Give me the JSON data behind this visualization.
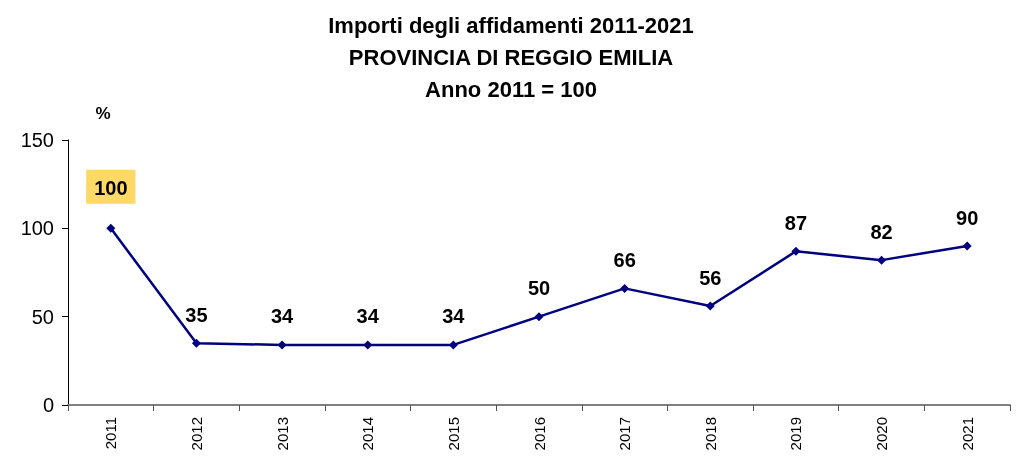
{
  "chart_data": {
    "type": "line",
    "title": "Importi degli affidamenti 2011-2021\nPROVINCIA DI REGGIO EMILIA\nAnno 2011 = 100",
    "ylabel": "%",
    "categories": [
      "2011",
      "2012",
      "2013",
      "2014",
      "2015",
      "2016",
      "2017",
      "2018",
      "2019",
      "2020",
      "2021"
    ],
    "series": [
      {
        "color": "#000080",
        "values": [
          100,
          35,
          34,
          34,
          34,
          50,
          66,
          56,
          87,
          82,
          90
        ]
      }
    ],
    "ylim": [
      0,
      150
    ],
    "yticks": [
      0,
      50,
      100,
      150
    ],
    "grid": false,
    "marker": "diamond",
    "line_style": "solid",
    "data_labels": true
  }
}
